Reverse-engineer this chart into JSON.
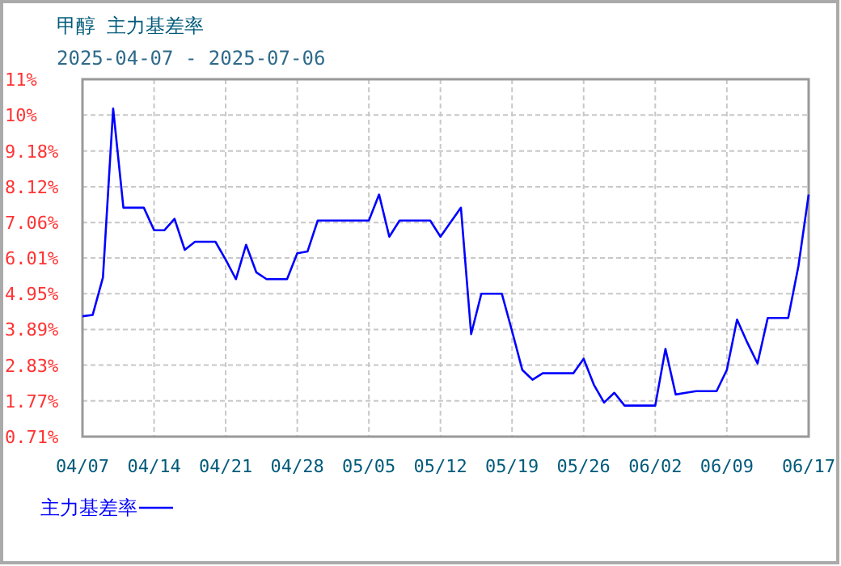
{
  "chart_data": {
    "type": "line",
    "title": "甲醇  主力基差率",
    "subtitle": "2025-04-07 - 2025-07-06",
    "x": [
      "2025-04-07",
      "2025-04-08",
      "2025-04-09",
      "2025-04-10",
      "2025-04-11",
      "2025-04-12",
      "2025-04-13",
      "2025-04-14",
      "2025-04-15",
      "2025-04-16",
      "2025-04-17",
      "2025-04-18",
      "2025-04-19",
      "2025-04-20",
      "2025-04-21",
      "2025-04-22",
      "2025-04-23",
      "2025-04-24",
      "2025-04-25",
      "2025-04-26",
      "2025-04-27",
      "2025-04-28",
      "2025-04-29",
      "2025-04-30",
      "2025-05-01",
      "2025-05-02",
      "2025-05-03",
      "2025-05-04",
      "2025-05-05",
      "2025-05-06",
      "2025-05-07",
      "2025-05-08",
      "2025-05-09",
      "2025-05-10",
      "2025-05-11",
      "2025-05-12",
      "2025-05-13",
      "2025-05-14",
      "2025-05-15",
      "2025-05-16",
      "2025-05-17",
      "2025-05-18",
      "2025-05-19",
      "2025-05-20",
      "2025-05-21",
      "2025-05-22",
      "2025-05-23",
      "2025-05-24",
      "2025-05-25",
      "2025-05-26",
      "2025-05-27",
      "2025-05-28",
      "2025-05-29",
      "2025-05-30",
      "2025-05-31",
      "2025-06-01",
      "2025-06-02",
      "2025-06-03",
      "2025-06-04",
      "2025-06-05",
      "2025-06-06",
      "2025-06-07",
      "2025-06-08",
      "2025-06-09",
      "2025-06-10",
      "2025-06-11",
      "2025-06-12",
      "2025-06-13",
      "2025-06-14",
      "2025-06-15",
      "2025-06-16",
      "2025-06-17"
    ],
    "series": [
      {
        "name": "主力基差率",
        "color": "#0000ff",
        "values": [
          4.28,
          4.32,
          5.43,
          10.44,
          7.5,
          7.5,
          7.5,
          6.83,
          6.83,
          7.17,
          6.25,
          6.49,
          6.49,
          6.49,
          5.96,
          5.38,
          6.4,
          5.58,
          5.38,
          5.38,
          5.38,
          6.15,
          6.2,
          7.12,
          7.12,
          7.12,
          7.12,
          7.12,
          7.12,
          7.89,
          6.64,
          7.12,
          7.12,
          7.12,
          7.12,
          6.64,
          7.07,
          7.5,
          3.75,
          4.95,
          4.95,
          4.95,
          3.84,
          2.69,
          2.4,
          2.59,
          2.59,
          2.59,
          2.59,
          3.02,
          2.25,
          1.72,
          2.01,
          1.63,
          1.63,
          1.63,
          1.63,
          3.31,
          1.96,
          2.01,
          2.06,
          2.06,
          2.06,
          2.69,
          4.18,
          3.5,
          2.88,
          4.23,
          4.23,
          4.23,
          5.77,
          7.89
        ]
      }
    ],
    "xlim": [
      "2025-04-07",
      "2025-06-17"
    ],
    "xticks": [
      {
        "value": "2025-04-07",
        "label": "04/07"
      },
      {
        "value": "2025-04-14",
        "label": "04/14"
      },
      {
        "value": "2025-04-21",
        "label": "04/21"
      },
      {
        "value": "2025-04-28",
        "label": "04/28"
      },
      {
        "value": "2025-05-05",
        "label": "05/05"
      },
      {
        "value": "2025-05-12",
        "label": "05/12"
      },
      {
        "value": "2025-05-19",
        "label": "05/19"
      },
      {
        "value": "2025-05-26",
        "label": "05/26"
      },
      {
        "value": "2025-06-02",
        "label": "06/02"
      },
      {
        "value": "2025-06-09",
        "label": "06/09"
      },
      {
        "value": "2025-06-17",
        "label": "06/17"
      }
    ],
    "ylim": [
      0.71,
      11.31
    ],
    "yticks": [
      {
        "value": 0.71,
        "label": "0.71%"
      },
      {
        "value": 1.77,
        "label": "1.77%"
      },
      {
        "value": 2.83,
        "label": "2.83%"
      },
      {
        "value": 3.89,
        "label": "3.89%"
      },
      {
        "value": 4.95,
        "label": "4.95%"
      },
      {
        "value": 6.01,
        "label": "6.01%"
      },
      {
        "value": 7.06,
        "label": "7.06%"
      },
      {
        "value": 8.12,
        "label": "8.12%"
      },
      {
        "value": 9.18,
        "label": "9.18%"
      },
      {
        "value": 10.25,
        "label": "10%"
      },
      {
        "value": 11.31,
        "label": "11%"
      }
    ],
    "grid": true,
    "legend": "bottom left",
    "marker": "none",
    "line_style": "solid"
  }
}
